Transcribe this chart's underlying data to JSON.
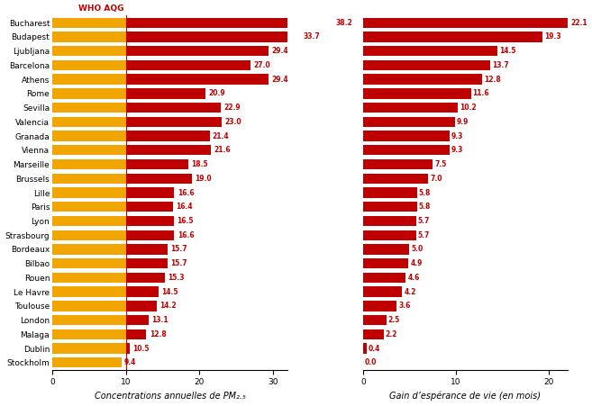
{
  "cities": [
    "Bucharest",
    "Budapest",
    "Ljubljana",
    "Barcelona",
    "Athens",
    "Rome",
    "Sevilla",
    "Valencia",
    "Granada",
    "Vienna",
    "Marseille",
    "Brussels",
    "Lille",
    "Paris",
    "Lyon",
    "Strasbourg",
    "Bordeaux",
    "Bilbao",
    "Rouen",
    "Le Havre",
    "Toulouse",
    "London",
    "Malaga",
    "Dublin",
    "Stockholm"
  ],
  "pm25": [
    38.2,
    33.7,
    29.4,
    27.0,
    29.4,
    20.9,
    22.9,
    23.0,
    21.4,
    21.6,
    18.5,
    19.0,
    16.6,
    16.4,
    16.5,
    16.6,
    15.7,
    15.7,
    15.3,
    14.5,
    14.2,
    13.1,
    12.8,
    10.5,
    9.4
  ],
  "life_gain": [
    22.1,
    19.3,
    14.5,
    13.7,
    12.8,
    11.6,
    10.2,
    9.9,
    9.3,
    9.3,
    7.5,
    7.0,
    5.8,
    5.8,
    5.7,
    5.7,
    5.0,
    4.9,
    4.6,
    4.2,
    3.6,
    2.5,
    2.2,
    0.4,
    0.0
  ],
  "who_threshold": 10,
  "orange_color": "#F0A500",
  "red_color": "#BE0000",
  "label_color": "#BE0000",
  "who_label_color": "#BE0000",
  "xlabel_pm25": "Concentrations annuelles de PM₂.₅",
  "xlabel_life": "Gain d’espérance de vie (en mois)",
  "who_label": "WHO AQG",
  "pm25_xlim": [
    0,
    32
  ],
  "life_xlim": [
    0,
    22
  ],
  "pm25_xticks": [
    0,
    10,
    20,
    30
  ],
  "life_xticks": [
    0,
    10,
    20
  ],
  "bar_height": 0.72,
  "figsize": [
    6.57,
    4.51
  ],
  "dpi": 100,
  "label_fontsize": 7,
  "tick_fontsize": 6.5,
  "value_fontsize": 5.5,
  "who_fontsize": 6.5,
  "city_fontsize": 6.5
}
